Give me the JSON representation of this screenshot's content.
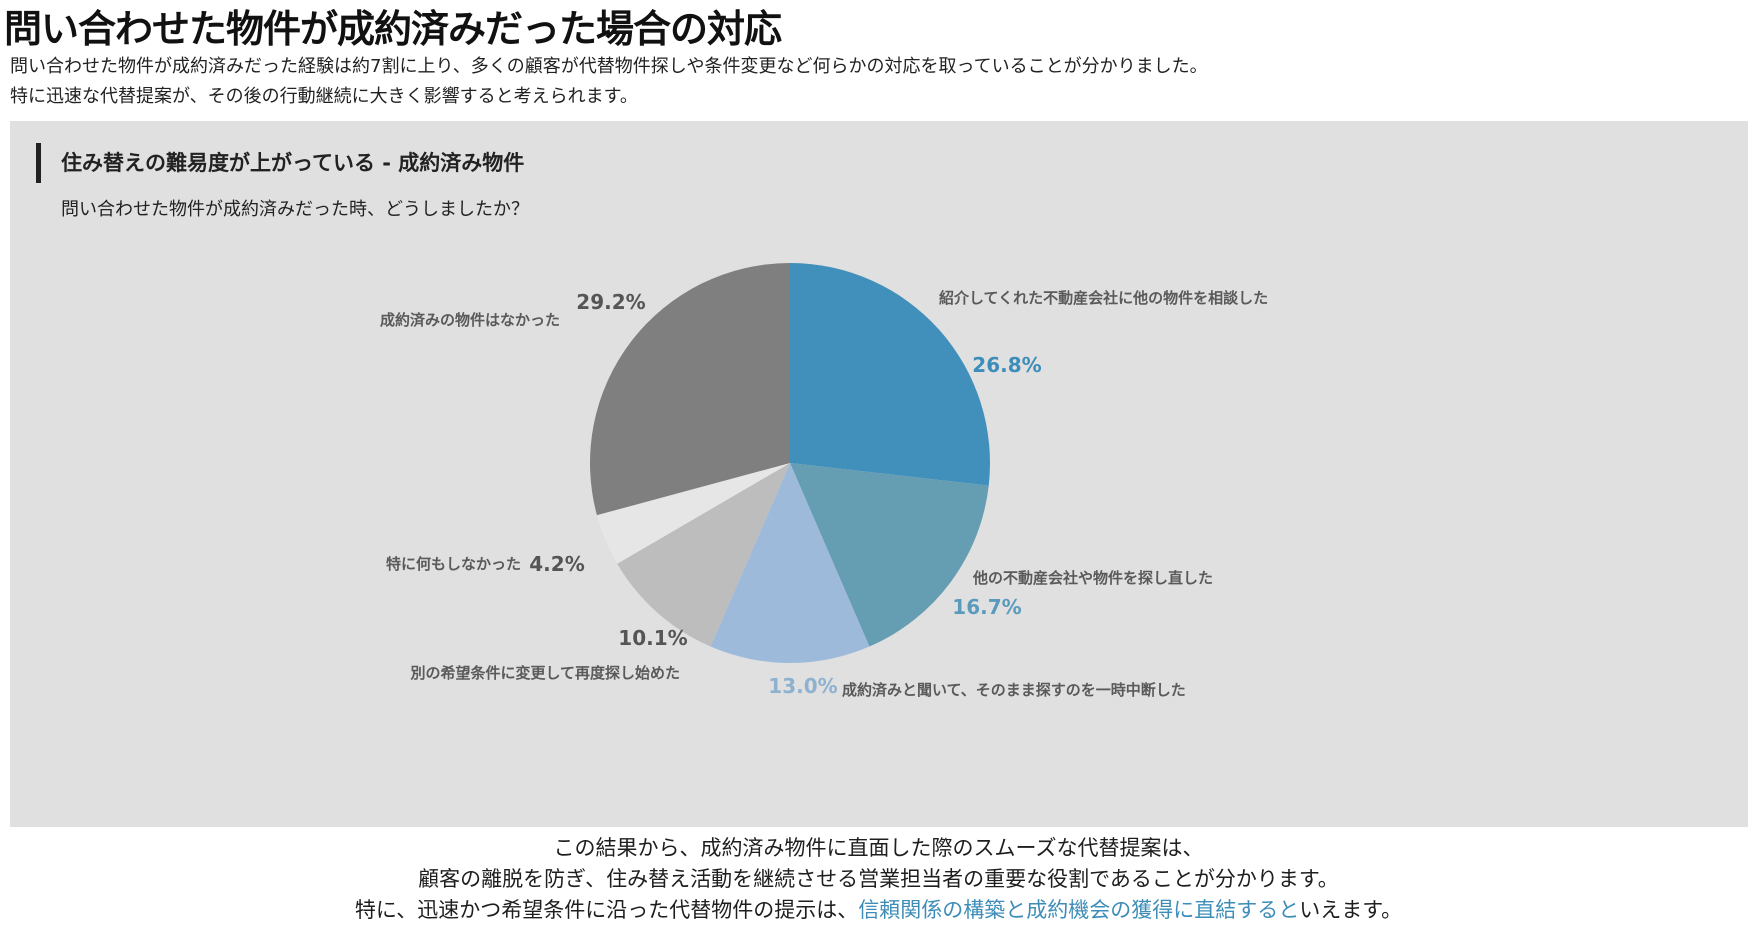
{
  "page": {
    "title": "問い合わせた物件が成約済みだった場合の対応",
    "intro_lines": [
      "問い合わせた物件が成約済みだった経験は約7割に上り、多くの顧客が代替物件探しや条件変更など何らかの対応を取っていることが分かりました。",
      "特に迅速な代替提案が、その後の行動継続に大きく影響すると考えられます。"
    ]
  },
  "panel": {
    "heading": "住み替えの難易度が上がっている - 成約済み物件",
    "question": "問い合わせた物件が成約済みだった時、どうしましたか？"
  },
  "chart_data": {
    "type": "pie",
    "unit": "%",
    "slices": [
      {
        "label": "紹介してくれた不動産会社に他の物件を相談した",
        "value": 26.8,
        "value_label": "26.8%",
        "color": "#4190bb",
        "value_color": "#3d8dbb"
      },
      {
        "label": "他の不動産会社や物件を探し直した",
        "value": 16.7,
        "value_label": "16.7%",
        "color": "#659db3",
        "value_color": "#5a9bbd"
      },
      {
        "label": "成約済みと聞いて、そのまま探すのを一時中断した",
        "value": 13.0,
        "value_label": "13.0%",
        "color": "#9dbadb",
        "value_color": "#8fb1d0"
      },
      {
        "label": "別の希望条件に変更して再度探し始めた",
        "value": 10.1,
        "value_label": "10.1%",
        "color": "#bdbdbd",
        "value_color": "#555555"
      },
      {
        "label": "特に何もしなかった",
        "value": 4.2,
        "value_label": "4.2%",
        "color": "#e6e6e6",
        "value_color": "#555555"
      },
      {
        "label": "成約済みの物件はなかった",
        "value": 29.2,
        "value_label": "29.2%",
        "color": "#7f7f7f",
        "value_color": "#555555"
      }
    ]
  },
  "conclusion": {
    "line1": "この結果から、成約済み物件に直面した際のスムーズな代替提案は、",
    "line2": "顧客の離脱を防ぎ、住み替え活動を継続させる営業担当者の重要な役割であることが分かります。",
    "line3_before": "特に、迅速かつ希望条件に沿った代替物件の提示は、",
    "line3_highlight": "信頼関係の構築と成約機会の獲得に直結すると",
    "line3_after": "いえます。"
  }
}
